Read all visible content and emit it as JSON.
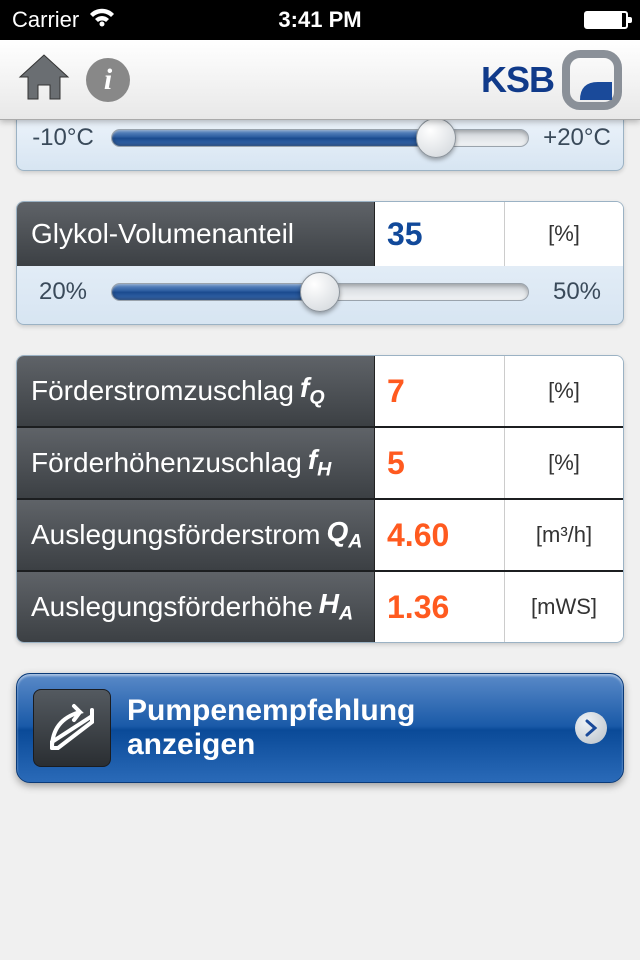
{
  "status": {
    "carrier": "Carrier",
    "time": "3:41 PM"
  },
  "logo": {
    "text": "KSB"
  },
  "slider1": {
    "min_label": "-10°C",
    "max_label": "+20°C",
    "fill_percent": 78,
    "thumb_percent": 78
  },
  "glycol": {
    "label": "Glykol-Volumenanteil",
    "value": "35",
    "unit": "[%]",
    "min_label": "20%",
    "max_label": "50%",
    "fill_percent": 50,
    "thumb_percent": 50
  },
  "results": [
    {
      "label": "Förderstromzuschlag",
      "sym": "f",
      "sub": "Q",
      "value": "7",
      "unit": "[%]"
    },
    {
      "label": "Förderhöhenzuschlag",
      "sym": "f",
      "sub": "H",
      "value": "5",
      "unit": "[%]"
    },
    {
      "label": "Auslegungsförderstrom",
      "sym": "Q",
      "sub": "A",
      "value": "4.60",
      "unit": "[m³/h]"
    },
    {
      "label": "Auslegungsförderhöhe",
      "sym": "H",
      "sub": "A",
      "value": "1.36",
      "unit": "[mWS]"
    }
  ],
  "action": {
    "line1": "Pumpenempfehlung",
    "line2": "anzeigen"
  },
  "colors": {
    "blue": "#11499a",
    "orange": "#ff5a1f"
  }
}
